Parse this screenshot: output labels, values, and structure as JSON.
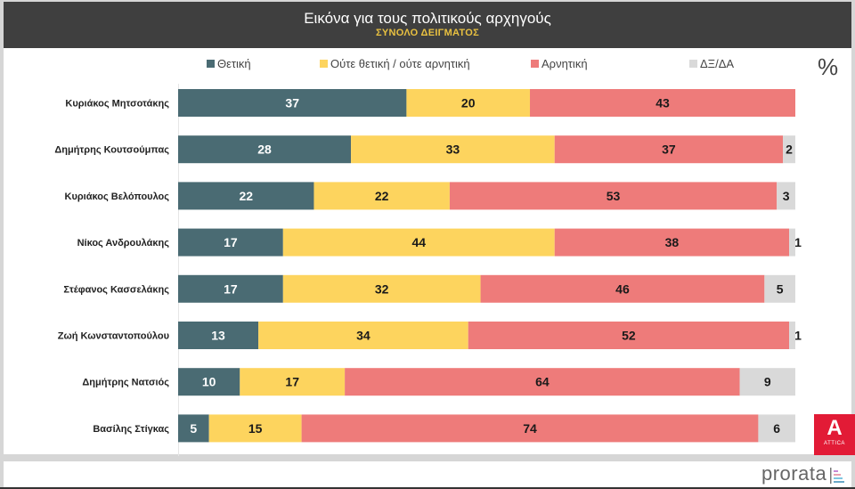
{
  "header": {
    "title": "Εικόνα για τους πολιτικούς αρχηγούς",
    "subtitle": "ΣΥΝΟΛΟ ΔΕΙΓΜΑΤΟΣ"
  },
  "unit_label": "%",
  "branding": {
    "attica_logo_text": "ATTICA",
    "attica_logo_letter": "A",
    "pollster": "prorata",
    "attica_color": "#e21b36"
  },
  "colors": {
    "positive": "#4a6b73",
    "neutral": "#fdd45e",
    "negative": "#ee7b7a",
    "dk_na": "#d9d9d9",
    "header_bg": "#3f3f3f",
    "subtitle": "#e8c040"
  },
  "chart_data": {
    "type": "bar",
    "orientation": "horizontal",
    "stacked": true,
    "title": "Εικόνα για τους πολιτικούς αρχηγούς",
    "subtitle": "ΣΥΝΟΛΟ ΔΕΙΓΜΑΤΟΣ",
    "xlabel": "",
    "ylabel": "",
    "unit": "%",
    "xlim": [
      0,
      100
    ],
    "grid": false,
    "legend_position": "top",
    "categories": [
      "Κυριάκος Μητσοτάκης",
      "Δημήτρης Κουτσούμπας",
      "Κυριάκος Βελόπουλος",
      "Νίκος Ανδρουλάκης",
      "Στέφανος Κασσελάκης",
      "Ζωή Κωνσταντοπούλου",
      "Δημήτρης Νατσιός",
      "Βασίλης Στίγκας"
    ],
    "series": [
      {
        "name": "Θετική",
        "color": "#4a6b73",
        "label_color": "#ffffff",
        "values": [
          37,
          28,
          22,
          17,
          17,
          13,
          10,
          5
        ]
      },
      {
        "name": "Ούτε θετική / ούτε αρνητική",
        "color": "#fdd45e",
        "label_color": "#1a1a1a",
        "values": [
          20,
          33,
          22,
          44,
          32,
          34,
          17,
          15
        ]
      },
      {
        "name": "Αρνητική",
        "color": "#ee7b7a",
        "label_color": "#1a1a1a",
        "values": [
          43,
          37,
          53,
          38,
          46,
          52,
          64,
          74
        ]
      },
      {
        "name": "ΔΞ/ΔΑ",
        "color": "#d9d9d9",
        "label_color": "#1a1a1a",
        "values": [
          0,
          2,
          3,
          1,
          5,
          1,
          9,
          6
        ]
      }
    ]
  }
}
